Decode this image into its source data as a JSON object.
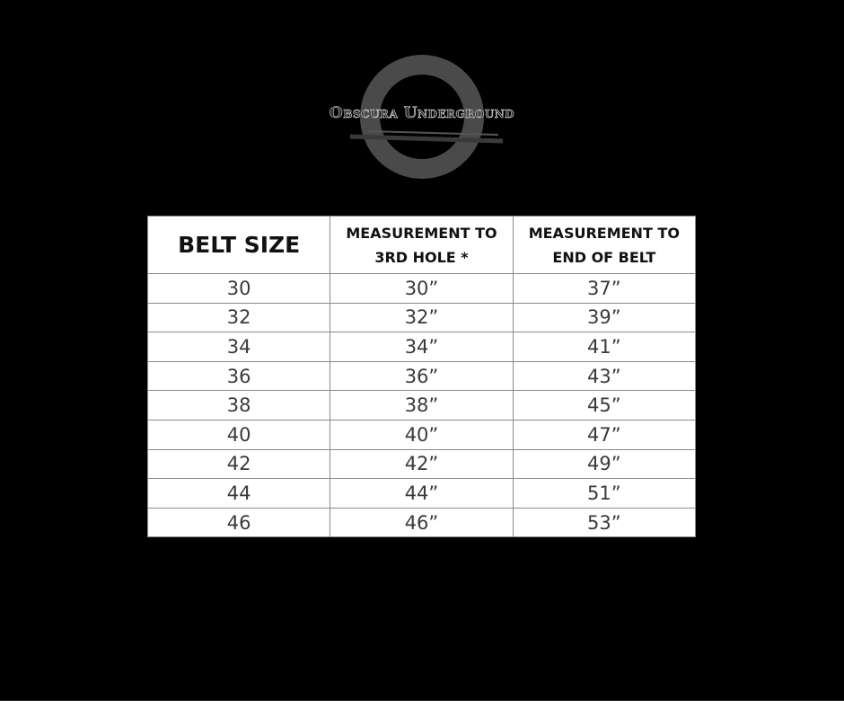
{
  "logo": {
    "text": "Obscura Underground",
    "ring_color": "#4a4a4a"
  },
  "table": {
    "headers": [
      "BELT SIZE",
      "MEASUREMENT TO 3RD HOLE *",
      "MEASUREMENT TO END OF BELT"
    ],
    "header_lines": [
      [
        "BELT SIZE"
      ],
      [
        "MEASUREMENT TO",
        "3RD HOLE *"
      ],
      [
        "MEASUREMENT TO",
        "END OF BELT"
      ]
    ],
    "rows": [
      [
        "30",
        "30”",
        "37”"
      ],
      [
        "32",
        "32”",
        "39”"
      ],
      [
        "34",
        "34”",
        "41”"
      ],
      [
        "36",
        "36”",
        "43”"
      ],
      [
        "38",
        "38”",
        "45”"
      ],
      [
        "40",
        "40”",
        "47”"
      ],
      [
        "42",
        "42”",
        "49”"
      ],
      [
        "44",
        "44”",
        "51”"
      ],
      [
        "46",
        "46”",
        "53”"
      ]
    ]
  }
}
